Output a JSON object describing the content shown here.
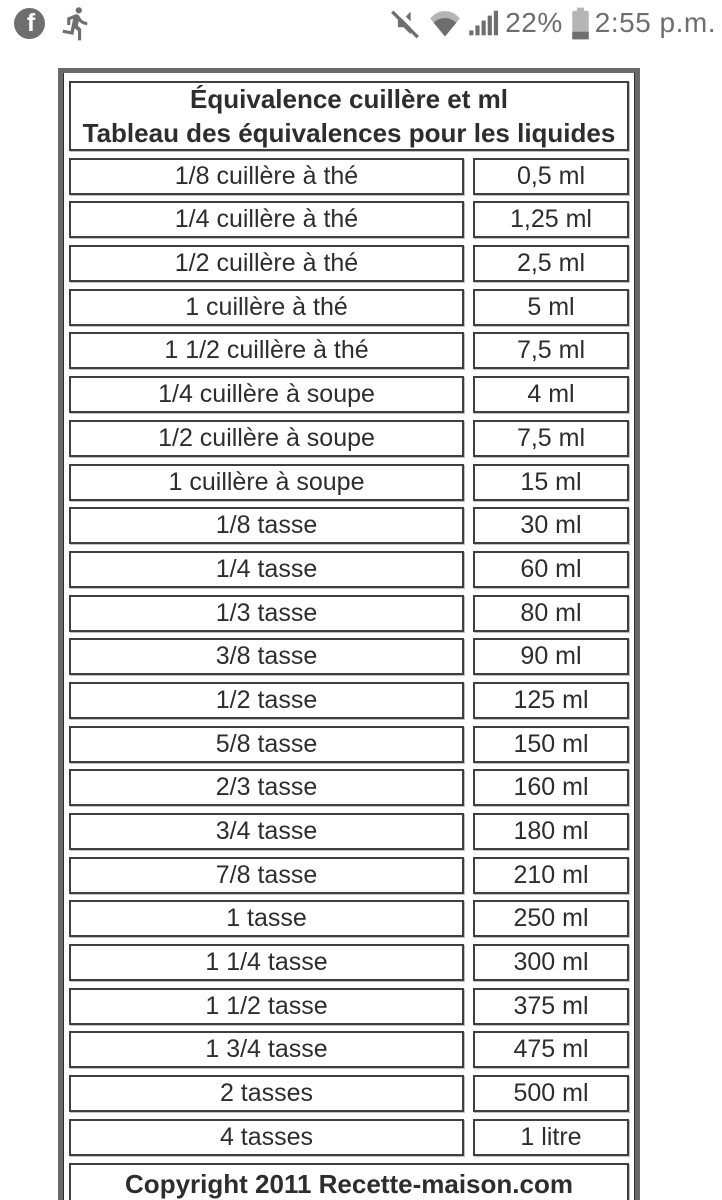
{
  "status_bar": {
    "icons_left": [
      "facebook-icon",
      "runner-activity-icon"
    ],
    "icons_right": [
      "volume-muted-icon",
      "wifi-icon",
      "cell-signal-icon",
      "battery-icon"
    ],
    "battery_percent": "22%",
    "time": "2:55 p.m."
  },
  "table": {
    "title_line1": "Équivalence cuillère et ml",
    "title_line2": "Tableau des équivalences pour les liquides",
    "rows": [
      {
        "measure": "1/8 cuillère à thé",
        "ml": "0,5 ml"
      },
      {
        "measure": "1/4 cuillère à thé",
        "ml": "1,25 ml"
      },
      {
        "measure": "1/2 cuillère à thé",
        "ml": "2,5 ml"
      },
      {
        "measure": "1 cuillère à thé",
        "ml": "5 ml"
      },
      {
        "measure": "1 1/2 cuillère à thé",
        "ml": "7,5 ml"
      },
      {
        "measure": "1/4 cuillère à soupe",
        "ml": "4 ml"
      },
      {
        "measure": "1/2 cuillère à soupe",
        "ml": "7,5 ml"
      },
      {
        "measure": "1 cuillère à soupe",
        "ml": "15 ml"
      },
      {
        "measure": "1/8 tasse",
        "ml": "30 ml"
      },
      {
        "measure": "1/4 tasse",
        "ml": "60 ml"
      },
      {
        "measure": "1/3 tasse",
        "ml": "80 ml"
      },
      {
        "measure": "3/8 tasse",
        "ml": "90 ml"
      },
      {
        "measure": "1/2 tasse",
        "ml": "125 ml"
      },
      {
        "measure": "5/8 tasse",
        "ml": "150 ml"
      },
      {
        "measure": "2/3 tasse",
        "ml": "160 ml"
      },
      {
        "measure": "3/4 tasse",
        "ml": "180 ml"
      },
      {
        "measure": "7/8 tasse",
        "ml": "210 ml"
      },
      {
        "measure": "1 tasse",
        "ml": "250 ml"
      },
      {
        "measure": "1 1/4 tasse",
        "ml": "300 ml"
      },
      {
        "measure": "1 1/2 tasse",
        "ml": "375 ml"
      },
      {
        "measure": "1 3/4 tasse",
        "ml": "475 ml"
      },
      {
        "measure": "2 tasses",
        "ml": "500 ml"
      },
      {
        "measure": "4 tasses",
        "ml": "1 litre"
      }
    ],
    "footer": "Copyright 2011 Recette-maison.com"
  },
  "colors": {
    "status_icon": "#6e6e6e",
    "status_icon_light": "#b5b5b5",
    "table_text": "#2d2d2d",
    "cell_border": "#3f3f3f",
    "outer_border": "#6a6a6a"
  }
}
